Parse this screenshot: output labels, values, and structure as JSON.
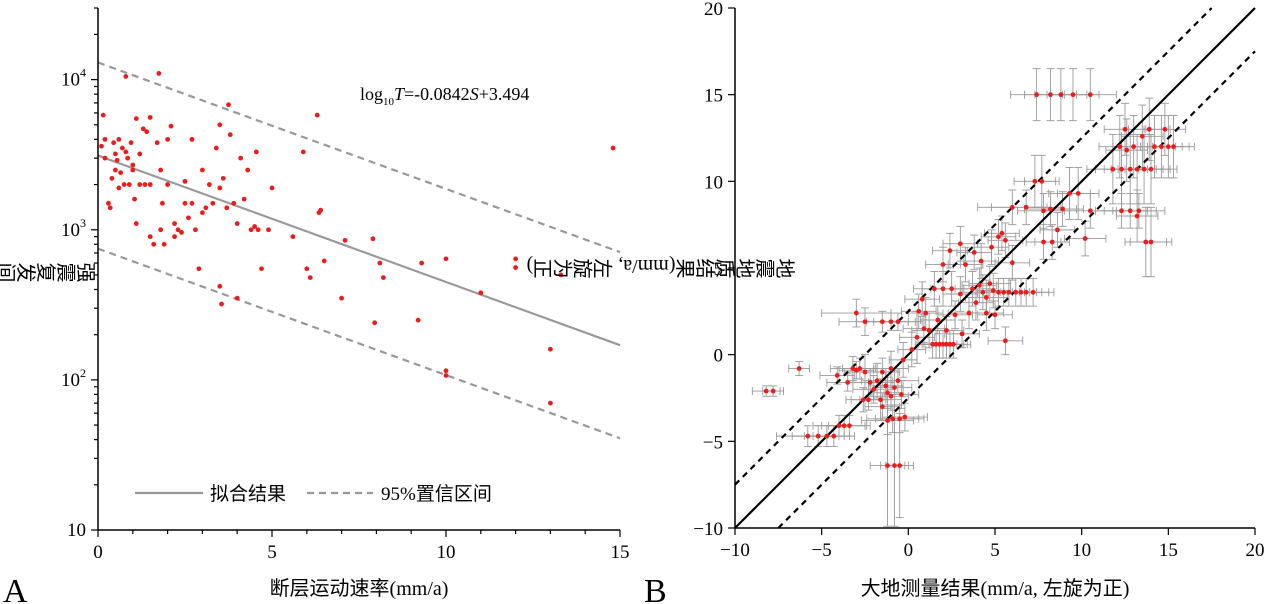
{
  "chart_data": [
    {
      "type": "scatter",
      "panel_label": "A",
      "xlabel": "断层运动速率(mm/a)",
      "ylabel": "强震复发间隔(年)",
      "xlim": [
        0,
        15
      ],
      "ylim": [
        10,
        30000
      ],
      "y_scale": "log",
      "x_ticks": [
        0,
        5,
        10,
        15
      ],
      "y_ticks": [
        {
          "value": 10,
          "label_base": "10",
          "label_exp": ""
        },
        {
          "value": 100,
          "label_base": "10",
          "label_exp": "2"
        },
        {
          "value": 1000,
          "label_base": "10",
          "label_exp": "3"
        },
        {
          "value": 10000,
          "label_base": "10",
          "label_exp": "4"
        }
      ],
      "equation": {
        "log": "log",
        "sub": "10",
        "var": "T",
        "mid": "=-0.0842",
        "var2": "S",
        "tail": "+3.494"
      },
      "fit": {
        "slope": -0.0842,
        "intercept": 3.494
      },
      "ci_offset_log": 0.62,
      "legend": {
        "placement": "bottom",
        "fit_label": "拟合结果",
        "ci_label": "95%置信区间"
      },
      "colors": {
        "points": "#ee1c1c",
        "fit": "#999999",
        "ci": "#999999"
      },
      "points": [
        [
          0.1,
          3600
        ],
        [
          0.15,
          5800
        ],
        [
          0.2,
          3000
        ],
        [
          0.2,
          4000
        ],
        [
          0.3,
          1500
        ],
        [
          0.35,
          1400
        ],
        [
          0.4,
          2200
        ],
        [
          0.45,
          3800
        ],
        [
          0.5,
          2500
        ],
        [
          0.5,
          3200
        ],
        [
          0.55,
          2900
        ],
        [
          0.6,
          1900
        ],
        [
          0.6,
          4000
        ],
        [
          0.65,
          2400
        ],
        [
          0.7,
          3500
        ],
        [
          0.75,
          2000
        ],
        [
          0.8,
          3300
        ],
        [
          0.8,
          10500
        ],
        [
          0.85,
          3000
        ],
        [
          0.9,
          2000
        ],
        [
          0.95,
          3800
        ],
        [
          1.0,
          2700
        ],
        [
          1.0,
          2500
        ],
        [
          1.05,
          1600
        ],
        [
          1.1,
          1100
        ],
        [
          1.1,
          5500
        ],
        [
          1.2,
          2000
        ],
        [
          1.2,
          3200
        ],
        [
          1.3,
          4700
        ],
        [
          1.35,
          2000
        ],
        [
          1.4,
          4500
        ],
        [
          1.5,
          2000
        ],
        [
          1.5,
          5600
        ],
        [
          1.5,
          900
        ],
        [
          1.6,
          800
        ],
        [
          1.7,
          3800
        ],
        [
          1.75,
          11000
        ],
        [
          1.8,
          2500
        ],
        [
          1.8,
          1000
        ],
        [
          1.85,
          1500
        ],
        [
          1.9,
          800
        ],
        [
          2.0,
          2000
        ],
        [
          2.0,
          4000
        ],
        [
          2.1,
          4900
        ],
        [
          2.2,
          900
        ],
        [
          2.2,
          1100
        ],
        [
          2.3,
          1000
        ],
        [
          2.4,
          960
        ],
        [
          2.5,
          2100
        ],
        [
          2.5,
          1500
        ],
        [
          2.6,
          1200
        ],
        [
          2.7,
          1500
        ],
        [
          2.7,
          4000
        ],
        [
          2.8,
          1000
        ],
        [
          2.9,
          550
        ],
        [
          3.0,
          1300
        ],
        [
          3.0,
          2500
        ],
        [
          3.1,
          1400
        ],
        [
          3.2,
          2000
        ],
        [
          3.3,
          1500
        ],
        [
          3.4,
          3500
        ],
        [
          3.5,
          5000
        ],
        [
          3.5,
          1900
        ],
        [
          3.5,
          420
        ],
        [
          3.55,
          320
        ],
        [
          3.6,
          2200
        ],
        [
          3.7,
          1400
        ],
        [
          3.75,
          6800
        ],
        [
          3.8,
          4300
        ],
        [
          3.9,
          1500
        ],
        [
          4.0,
          1100
        ],
        [
          4.0,
          350
        ],
        [
          4.1,
          3000
        ],
        [
          4.2,
          1600
        ],
        [
          4.3,
          2500
        ],
        [
          4.4,
          1000
        ],
        [
          4.5,
          1050
        ],
        [
          4.55,
          3300
        ],
        [
          4.6,
          1000
        ],
        [
          4.7,
          550
        ],
        [
          4.9,
          1000
        ],
        [
          5.0,
          1900
        ],
        [
          5.6,
          900
        ],
        [
          5.9,
          3300
        ],
        [
          6.0,
          550
        ],
        [
          6.1,
          480
        ],
        [
          6.3,
          5800
        ],
        [
          6.35,
          1300
        ],
        [
          6.4,
          1350
        ],
        [
          6.5,
          620
        ],
        [
          7.0,
          350
        ],
        [
          7.1,
          850
        ],
        [
          7.9,
          870
        ],
        [
          7.95,
          240
        ],
        [
          8.1,
          600
        ],
        [
          8.2,
          480
        ],
        [
          9.2,
          250
        ],
        [
          9.3,
          600
        ],
        [
          10.0,
          640
        ],
        [
          10.0,
          115
        ],
        [
          10.0,
          107
        ],
        [
          11.0,
          380
        ],
        [
          12.0,
          640
        ],
        [
          12.0,
          560
        ],
        [
          13.0,
          160
        ],
        [
          13.0,
          70
        ],
        [
          13.3,
          500
        ],
        [
          14.8,
          3500
        ]
      ]
    },
    {
      "type": "scatter",
      "panel_label": "B",
      "xlabel": "大地测量结果(mm/a, 左旋为正)",
      "ylabel": "地震地质结果(mm/a, 左旋为正)",
      "xlim": [
        -10,
        20
      ],
      "ylim": [
        -10,
        20
      ],
      "x_ticks": [
        -10,
        -5,
        0,
        5,
        10,
        15,
        20
      ],
      "y_ticks": [
        -10,
        -5,
        0,
        5,
        10,
        15,
        20
      ],
      "reference_line": "y = x",
      "dashed_offset": 2.5,
      "colors": {
        "points": "#ee1c1c",
        "errorbars": "#999999",
        "lines": "#000000"
      },
      "points": [
        [
          -8.2,
          -2.1,
          0.8,
          0.3
        ],
        [
          -7.8,
          -2.1,
          0.6,
          0.3
        ],
        [
          -6.3,
          -0.8,
          0.6,
          0.4
        ],
        [
          -5.8,
          -4.7,
          1.8,
          0.6
        ],
        [
          -5.2,
          -4.7,
          1.5,
          0.6
        ],
        [
          -4.7,
          -4.7,
          1.3,
          0.6
        ],
        [
          -4.3,
          -4.7,
          1.2,
          0.6
        ],
        [
          -4.0,
          -4.1,
          1.5,
          0.6
        ],
        [
          -3.7,
          -4.1,
          1.3,
          0.6
        ],
        [
          -3.4,
          -4.1,
          1.2,
          0.6
        ],
        [
          -4.1,
          -1.2,
          1.0,
          0.5
        ],
        [
          -3.5,
          -1.6,
          1.2,
          0.5
        ],
        [
          -3.2,
          -0.8,
          1.3,
          0.7
        ],
        [
          -3.0,
          -0.9,
          1.0,
          0.5
        ],
        [
          -2.8,
          -0.8,
          1.0,
          0.6
        ],
        [
          -2.5,
          -1.0,
          1.2,
          1.0
        ],
        [
          -2.2,
          -1.6,
          1.0,
          0.8
        ],
        [
          -2.0,
          -2.0,
          1.2,
          0.8
        ],
        [
          -1.8,
          -1.5,
          0.9,
          1.0
        ],
        [
          -1.6,
          -2.6,
          1.2,
          1.2
        ],
        [
          -1.5,
          -1.0,
          1.0,
          0.8
        ],
        [
          -1.3,
          -1.8,
          1.0,
          0.8
        ],
        [
          -1.2,
          -2.2,
          0.9,
          0.9
        ],
        [
          -1.0,
          -0.8,
          1.0,
          1.0
        ],
        [
          -0.8,
          -1.9,
          1.0,
          1.0
        ],
        [
          -0.6,
          -1.5,
          1.2,
          0.7
        ],
        [
          -0.4,
          -2.3,
          1.0,
          0.8
        ],
        [
          -2.6,
          -2.6,
          1.0,
          0.7
        ],
        [
          -2.3,
          -2.6,
          1.0,
          0.6
        ],
        [
          -3.0,
          2.4,
          2.0,
          0.8
        ],
        [
          -2.5,
          1.9,
          1.5,
          0.8
        ],
        [
          -1.5,
          1.9,
          1.5,
          0.6
        ],
        [
          -1.0,
          1.9,
          1.4,
          0.5
        ],
        [
          -0.6,
          1.9,
          1.4,
          0.5
        ],
        [
          -1.2,
          -3.8,
          1.5,
          0.8
        ],
        [
          -0.9,
          -3.7,
          1.5,
          0.8
        ],
        [
          -0.5,
          -3.7,
          1.4,
          0.8
        ],
        [
          -0.2,
          -3.6,
          1.3,
          0.8
        ],
        [
          -1.5,
          -3.0,
          1.0,
          0.8
        ],
        [
          -1.0,
          -2.4,
          1.0,
          0.8
        ],
        [
          -1.2,
          -6.4,
          1.0,
          3.5
        ],
        [
          -0.8,
          -6.4,
          0.8,
          3.5
        ],
        [
          -0.5,
          -6.4,
          0.8,
          3.0
        ],
        [
          -0.3,
          -0.3,
          0.8,
          1.0
        ],
        [
          0.2,
          0.3,
          0.8,
          1.0
        ],
        [
          0.5,
          1.0,
          1.0,
          1.5
        ],
        [
          0.6,
          2.5,
          1.0,
          1.0
        ],
        [
          0.8,
          3.2,
          1.0,
          1.0
        ],
        [
          0.9,
          1.5,
          1.2,
          0.8
        ],
        [
          1.0,
          2.4,
          1.0,
          0.9
        ],
        [
          1.2,
          1.4,
          1.0,
          1.0
        ],
        [
          1.4,
          0.6,
          1.0,
          0.8
        ],
        [
          1.6,
          0.6,
          1.0,
          0.8
        ],
        [
          1.8,
          0.6,
          1.0,
          0.8
        ],
        [
          2.0,
          0.6,
          1.1,
          0.8
        ],
        [
          2.2,
          0.6,
          1.0,
          0.8
        ],
        [
          2.4,
          0.6,
          1.0,
          0.8
        ],
        [
          2.6,
          0.6,
          1.0,
          0.8
        ],
        [
          1.5,
          3.8,
          1.2,
          1.0
        ],
        [
          2.0,
          3.8,
          1.2,
          1.0
        ],
        [
          2.5,
          3.8,
          1.2,
          1.0
        ],
        [
          3.0,
          3.5,
          1.0,
          1.0
        ],
        [
          1.7,
          2.0,
          1.0,
          0.8
        ],
        [
          2.2,
          1.4,
          1.0,
          0.8
        ],
        [
          2.7,
          2.3,
          1.0,
          0.8
        ],
        [
          3.1,
          1.2,
          1.0,
          0.8
        ],
        [
          3.5,
          2.4,
          1.2,
          0.9
        ],
        [
          3.7,
          3.8,
          1.2,
          1.0
        ],
        [
          3.9,
          3.0,
          1.0,
          1.0
        ],
        [
          4.1,
          4.0,
          1.0,
          1.0
        ],
        [
          4.3,
          3.6,
          1.2,
          1.0
        ],
        [
          4.5,
          3.3,
          1.2,
          1.0
        ],
        [
          4.7,
          4.1,
          1.2,
          1.0
        ],
        [
          4.9,
          3.7,
          1.0,
          1.0
        ],
        [
          5.2,
          3.6,
          1.2,
          0.8
        ],
        [
          5.5,
          3.6,
          1.2,
          0.8
        ],
        [
          5.8,
          3.6,
          1.2,
          0.8
        ],
        [
          6.2,
          3.6,
          1.2,
          0.8
        ],
        [
          6.5,
          3.6,
          1.2,
          0.8
        ],
        [
          6.8,
          3.6,
          1.3,
          0.8
        ],
        [
          7.2,
          3.6,
          1.2,
          0.8
        ],
        [
          3.3,
          5.2,
          1.0,
          1.0
        ],
        [
          3.8,
          5.9,
          1.0,
          1.0
        ],
        [
          4.2,
          5.4,
          1.0,
          1.0
        ],
        [
          4.8,
          6.2,
          1.0,
          1.0
        ],
        [
          5.2,
          6.8,
          1.0,
          1.0
        ],
        [
          5.4,
          7.0,
          1.0,
          1.0
        ],
        [
          5.6,
          6.6,
          1.0,
          1.0
        ],
        [
          3.0,
          6.4,
          1.0,
          1.0
        ],
        [
          2.4,
          6.0,
          1.0,
          1.0
        ],
        [
          2.0,
          5.2,
          1.0,
          1.0
        ],
        [
          4.5,
          2.4,
          1.0,
          1.0
        ],
        [
          5.0,
          2.3,
          1.0,
          0.8
        ],
        [
          5.6,
          0.8,
          1.0,
          0.8
        ],
        [
          6.0,
          5.3,
          1.0,
          1.0
        ],
        [
          7.8,
          6.5,
          1.0,
          1.0
        ],
        [
          8.3,
          6.5,
          1.0,
          1.0
        ],
        [
          8.6,
          7.2,
          1.0,
          1.0
        ],
        [
          6.0,
          8.5,
          2.0,
          1.0
        ],
        [
          6.8,
          8.5,
          2.0,
          1.0
        ],
        [
          7.8,
          8.3,
          1.5,
          1.0
        ],
        [
          8.2,
          8.4,
          1.5,
          1.0
        ],
        [
          8.9,
          8.4,
          1.2,
          1.0
        ],
        [
          9.3,
          9.3,
          1.2,
          1.5
        ],
        [
          9.8,
          9.3,
          1.2,
          1.5
        ],
        [
          10.2,
          6.7,
          1.2,
          1.0
        ],
        [
          7.3,
          10.0,
          1.2,
          1.5
        ],
        [
          7.7,
          10.0,
          1.0,
          1.5
        ],
        [
          10.5,
          8.3,
          1.5,
          1.0
        ],
        [
          12.3,
          8.3,
          1.5,
          1.0
        ],
        [
          12.8,
          8.3,
          1.5,
          1.0
        ],
        [
          13.3,
          8.3,
          1.5,
          1.0
        ],
        [
          7.4,
          15.0,
          1.5,
          1.5
        ],
        [
          8.2,
          15.0,
          1.5,
          1.5
        ],
        [
          8.8,
          15.0,
          1.5,
          1.5
        ],
        [
          9.5,
          15.0,
          1.5,
          1.5
        ],
        [
          10.5,
          15.0,
          1.5,
          1.5
        ],
        [
          11.8,
          10.7,
          1.5,
          2.0
        ],
        [
          12.3,
          10.7,
          1.5,
          2.0
        ],
        [
          12.8,
          10.7,
          1.5,
          2.0
        ],
        [
          13.2,
          10.7,
          1.5,
          2.0
        ],
        [
          13.6,
          10.7,
          1.5,
          2.0
        ],
        [
          14.0,
          10.7,
          1.5,
          2.0
        ],
        [
          12.2,
          12.0,
          1.2,
          1.8
        ],
        [
          12.6,
          11.8,
          1.2,
          1.8
        ],
        [
          13.0,
          12.0,
          1.2,
          1.8
        ],
        [
          13.5,
          12.6,
          1.2,
          1.8
        ],
        [
          13.9,
          13.0,
          1.2,
          1.8
        ],
        [
          14.2,
          12.0,
          1.2,
          1.8
        ],
        [
          14.6,
          12.0,
          1.2,
          1.8
        ],
        [
          15.0,
          12.0,
          1.2,
          1.8
        ],
        [
          15.3,
          12.0,
          1.2,
          1.8
        ],
        [
          13.7,
          6.5,
          1.2,
          2.0
        ],
        [
          14.0,
          6.5,
          1.2,
          2.0
        ],
        [
          13.2,
          8.0,
          1.2,
          1.5
        ],
        [
          12.5,
          13.0,
          1.2,
          1.5
        ],
        [
          14.8,
          13.0,
          1.2,
          1.5
        ]
      ]
    }
  ]
}
